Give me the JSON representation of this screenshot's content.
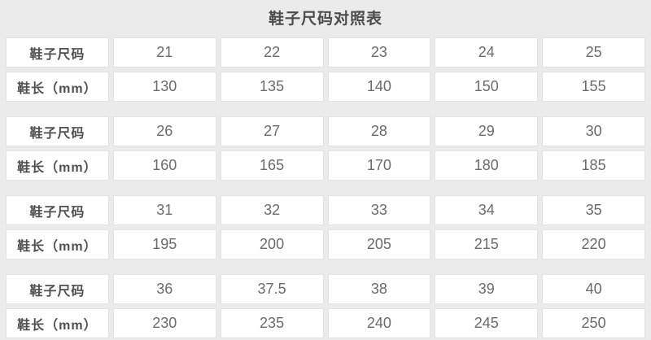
{
  "title": "鞋子尺码对照表",
  "row_labels": {
    "size": "鞋子尺码",
    "length": "鞋长（mm）"
  },
  "colors": {
    "background": "#ebebeb",
    "cell_background": "#ffffff",
    "cell_border": "#e3e3e3",
    "title_text": "#4c4c4c",
    "label_text": "#4f4f4f",
    "value_text": "#6b6b6b"
  },
  "sections": [
    {
      "sizes": [
        "21",
        "22",
        "23",
        "24",
        "25"
      ],
      "lengths": [
        "130",
        "135",
        "140",
        "150",
        "155"
      ]
    },
    {
      "sizes": [
        "26",
        "27",
        "28",
        "29",
        "30"
      ],
      "lengths": [
        "160",
        "165",
        "170",
        "180",
        "185"
      ]
    },
    {
      "sizes": [
        "31",
        "32",
        "33",
        "34",
        "35"
      ],
      "lengths": [
        "195",
        "200",
        "205",
        "215",
        "220"
      ]
    },
    {
      "sizes": [
        "36",
        "37.5",
        "38",
        "39",
        "40"
      ],
      "lengths": [
        "230",
        "235",
        "240",
        "245",
        "250"
      ]
    }
  ],
  "chart_data": {
    "type": "table",
    "title": "鞋子尺码对照表",
    "row_header_size": "鞋子尺码",
    "row_header_length": "鞋长（mm）",
    "shoe_sizes": [
      21,
      22,
      23,
      24,
      25,
      26,
      27,
      28,
      29,
      30,
      31,
      32,
      33,
      34,
      35,
      36,
      37.5,
      38,
      39,
      40
    ],
    "lengths_mm": [
      130,
      135,
      140,
      150,
      155,
      160,
      165,
      170,
      180,
      185,
      195,
      200,
      205,
      215,
      220,
      230,
      235,
      240,
      245,
      250
    ],
    "layout": "4 stacked sections, each with a size row and a length row, 1 label column + 5 value columns"
  }
}
